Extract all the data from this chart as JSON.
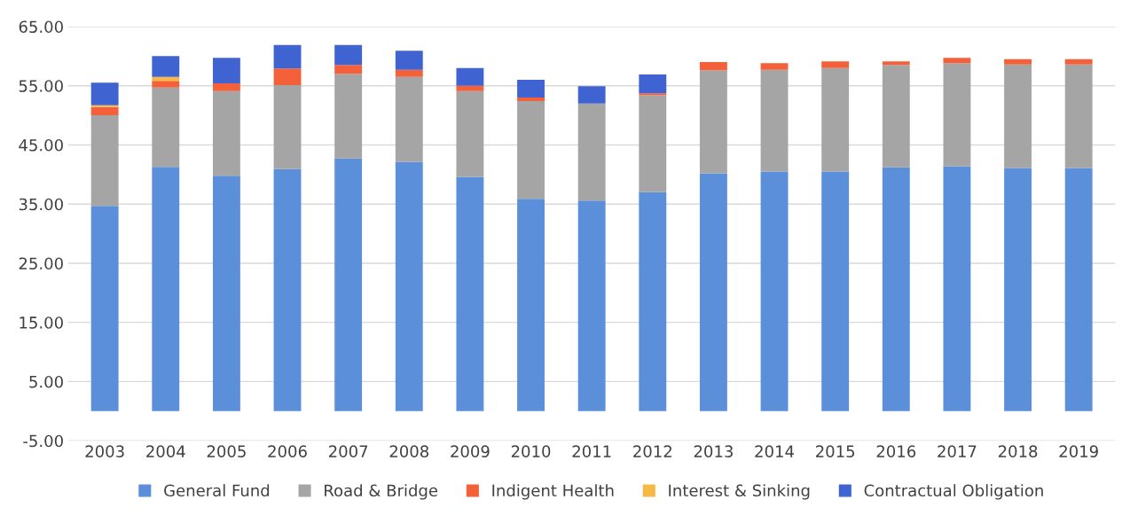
{
  "chart_data": {
    "type": "bar",
    "stacked": true,
    "legend": "bottom",
    "grid": "y",
    "categories": [
      "2003",
      "2004",
      "2005",
      "2006",
      "2007",
      "2008",
      "2009",
      "2010",
      "2011",
      "2012",
      "2013",
      "2014",
      "2015",
      "2016",
      "2017",
      "2018",
      "2019"
    ],
    "ylim": [
      -5,
      65
    ],
    "yticks": [
      {
        "value": -5,
        "label": "-5.00"
      },
      {
        "value": 5,
        "label": "5.00"
      },
      {
        "value": 15,
        "label": "15.00"
      },
      {
        "value": 25,
        "label": "25.00"
      },
      {
        "value": 35,
        "label": "35.00"
      },
      {
        "value": 45,
        "label": "45.00"
      },
      {
        "value": 55,
        "label": "55.00"
      },
      {
        "value": 65,
        "label": "65.00"
      }
    ],
    "series": [
      {
        "name": "General Fund",
        "color": "#5b8fd9",
        "values": [
          34.7,
          41.3,
          39.8,
          40.9,
          42.7,
          42.1,
          39.6,
          35.9,
          35.6,
          37.0,
          40.2,
          40.5,
          40.5,
          41.2,
          41.4,
          41.1,
          41.1
        ]
      },
      {
        "name": "Road & Bridge",
        "color": "#a5a5a5",
        "values": [
          15.3,
          13.4,
          14.3,
          14.2,
          14.3,
          14.4,
          14.5,
          16.5,
          16.4,
          16.4,
          17.4,
          17.2,
          17.5,
          17.3,
          17.4,
          17.5,
          17.5
        ]
      },
      {
        "name": "Indigent Health",
        "color": "#f4603a",
        "values": [
          1.4,
          1.1,
          1.3,
          2.8,
          1.5,
          1.2,
          0.9,
          0.6,
          null,
          0.3,
          1.4,
          1.1,
          1.1,
          0.6,
          0.9,
          0.9,
          0.9
        ]
      },
      {
        "name": "Interest & Sinking",
        "color": "#f7b844",
        "values": [
          0.3,
          0.7,
          null,
          null,
          null,
          null,
          null,
          null,
          null,
          null,
          null,
          null,
          null,
          null,
          null,
          null,
          null
        ]
      },
      {
        "name": "Contractual Obligation",
        "color": "#3f63d0",
        "values": [
          3.8,
          3.5,
          4.3,
          4.0,
          3.4,
          3.2,
          3.0,
          3.0,
          2.9,
          3.2,
          null,
          null,
          null,
          null,
          null,
          null,
          null
        ]
      }
    ]
  }
}
